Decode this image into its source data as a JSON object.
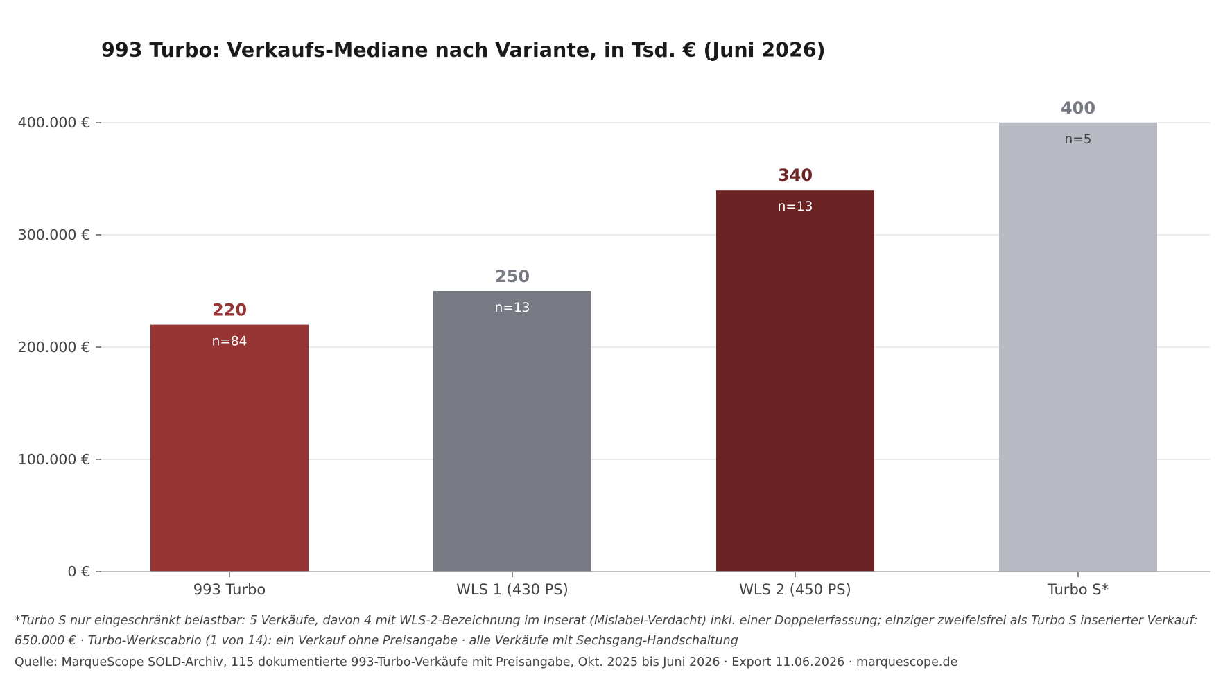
{
  "chart_data": {
    "type": "bar",
    "title": "993 Turbo: Verkaufs-Mediane nach Variante, in Tsd. € (Juni 2026)",
    "xlabel": "",
    "ylabel": "",
    "ylim": [
      0,
      400000
    ],
    "yticks": [
      0,
      100000,
      200000,
      300000,
      400000
    ],
    "ytick_labels": [
      "0 €",
      "100.000 €",
      "200.000 €",
      "300.000 €",
      "400.000 €"
    ],
    "grid": "horizontal",
    "categories": [
      "993 Turbo",
      "WLS 1 (430 PS)",
      "WLS 2 (450 PS)",
      "Turbo S*"
    ],
    "values": [
      220000,
      250000,
      340000,
      400000
    ],
    "value_labels": [
      "220",
      "250",
      "340",
      "400"
    ],
    "count_labels": [
      "n=84",
      "n=13",
      "n=13",
      "n=5"
    ],
    "bar_colors": [
      "#963434",
      "#777a82",
      "#6c2323",
      "#b8bac3"
    ],
    "value_label_colors": [
      "#963434",
      "#777a82",
      "#6c2323",
      "#777a82"
    ],
    "count_label_colors": [
      "#ffffff",
      "#ffffff",
      "#ffffff",
      "#444444"
    ]
  },
  "footnotes": {
    "note": "*Turbo S nur eingeschränkt belastbar: 5 Verkäufe, davon 4 mit WLS-2-Bezeichnung im Inserat (Mislabel-Verdacht) inkl. einer Doppelerfassung; einziger zweifelsfrei als Turbo S inserierter Verkauf: 650.000 € · Turbo-Werkscabrio (1 von 14): ein Verkauf ohne Preisangabe · alle Verkäufe mit Sechsgang-Handschaltung",
    "source": "Quelle: MarqueScope SOLD-Archiv, 115 dokumentierte 993-Turbo-Verkäufe mit Preisangabe, Okt. 2025 bis Juni 2026 · Export 11.06.2026 · marquescope.de"
  }
}
